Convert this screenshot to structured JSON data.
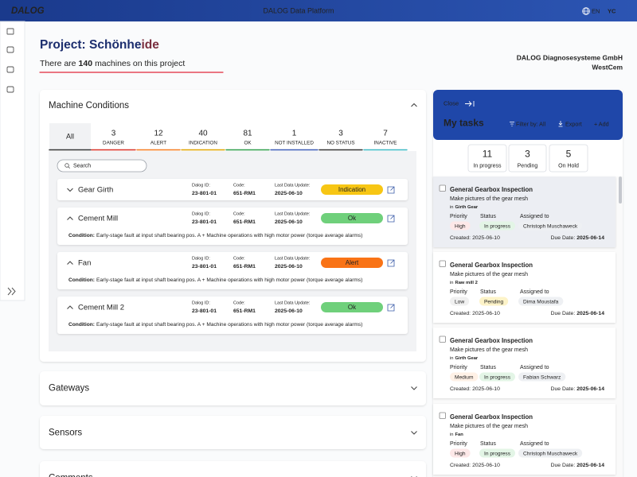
{
  "header": {
    "logo": "DALOG",
    "title": "DALOG Data Platform",
    "language": "EN",
    "user": "YC"
  },
  "project": {
    "title_prefix": "Project: Schönhe",
    "title_suffix": "ide",
    "machines_prefix": "There are",
    "machine_count": 140,
    "machines_suffix": "machines on this project",
    "company": "DALOG Diagnosesysteme GmbH",
    "site": "WestCem"
  },
  "machine_conditions": {
    "title": "Machine Conditions",
    "tabs": [
      {
        "label": "All"
      },
      {
        "count": 3,
        "label": "DANGER",
        "color": "#d93025"
      },
      {
        "count": 12,
        "label": "ALERT",
        "color": "#f57c1f"
      },
      {
        "count": 40,
        "label": "INDICATION",
        "color": "#e0a400"
      },
      {
        "count": 81,
        "label": "OK",
        "color": "#2e9e4a"
      },
      {
        "count": 1,
        "label": "NOT INSTALLED",
        "color": "#3b5bb5"
      },
      {
        "count": 3,
        "label": "NO STATUS",
        "color": "#333333"
      },
      {
        "count": 7,
        "label": "INACTIVE",
        "color": "#3bb8c4"
      }
    ],
    "search_placeholder": "Search",
    "field_labels": {
      "dalog_id": "Dalog ID:",
      "code": "Code:",
      "last_update": "Last Data Update:",
      "condition": "Condition:"
    },
    "machines": [
      {
        "name": "Gear Girth",
        "dalog_id": "23-801-01",
        "code": "651-RM1",
        "last_update": "2025-06-10",
        "status": "Indication",
        "status_color": "#f7c614",
        "status_text_color": "#1a1a1a"
      },
      {
        "name": "Cement Mill",
        "dalog_id": "23-801-01",
        "code": "651-RM1",
        "last_update": "2025-06-10",
        "status": "Ok",
        "status_color": "#6fd07b",
        "status_text_color": "#ffffff",
        "condition": "Early-stage fault at input shaft bearing pos. A + Machine operations with high motor power (torque average alarms)"
      },
      {
        "name": "Fan",
        "dalog_id": "23-801-01",
        "code": "651-RM1",
        "last_update": "2025-06-10",
        "status": "Alert",
        "status_color": "#f97316",
        "status_text_color": "#ffffff",
        "condition": "Early-stage fault at input shaft bearing pos. A + Machine operations with high motor power (torque average alarms)"
      },
      {
        "name": "Cement Mill 2",
        "dalog_id": "23-801-01",
        "code": "651-RM1",
        "last_update": "2025-06-10",
        "status": "Ok",
        "status_color": "#6fd07b",
        "status_text_color": "#ffffff",
        "condition": "Early-stage fault at input shaft bearing pos. A + Machine operations with high motor power (torque average alarms)"
      }
    ]
  },
  "sections": [
    "Gateways",
    "Sensors",
    "Comments"
  ],
  "tasks": {
    "close": "Close",
    "title": "My tasks",
    "filter": "Filter by: All",
    "export": "Export",
    "add": "+ Add",
    "summary": [
      {
        "count": 11,
        "label": "In progress"
      },
      {
        "count": 3,
        "label": "Pending"
      },
      {
        "count": 5,
        "label": "On Hold"
      }
    ],
    "field_labels": {
      "priority": "Priority",
      "status": "Status",
      "assigned": "Assigned to",
      "created": "Created:",
      "due": "Due Date:",
      "location": "in"
    },
    "items": [
      {
        "title": "General Gearbox Inspection",
        "description": "Make pictures of the gear mesh",
        "location": "Girth Gear",
        "priority": "High",
        "priority_color": "#e53935",
        "priority_bg": "#fde8e8",
        "status": "In progress",
        "status_color": "#2e9e4a",
        "status_bg": "#e3f5e6",
        "assigned": "Christoph Muschaweck",
        "created": "2025-06-10",
        "due": "2025-06-14"
      },
      {
        "title": "General Gearbox Inspection",
        "description": "Make pictures of the gear mesh",
        "location": "Raw mill 2",
        "priority": "Low",
        "priority_color": "#555555",
        "priority_bg": "#f0f0f0",
        "status": "Pending",
        "status_color": "#d98a00",
        "status_bg": "#fdf3c8",
        "assigned": "Dima Moustafa",
        "created": "2025-06-10",
        "due": "2025-06-14"
      },
      {
        "title": "General Gearbox Inspection",
        "description": "Make pictures of the gear mesh",
        "location": "Girth Gear",
        "priority": "Medium",
        "priority_color": "#f57c1f",
        "priority_bg": "#fff1e6",
        "status": "In progress",
        "status_color": "#2e9e4a",
        "status_bg": "#e3f5e6",
        "assigned": "Fabian Schwarz",
        "created": "2025-06-10",
        "due": "2025-06-14"
      },
      {
        "title": "General Gearbox Inspection",
        "description": "Make pictures of the gear mesh",
        "location": "Fan",
        "priority": "High",
        "priority_color": "#e53935",
        "priority_bg": "#fde8e8",
        "status": "In progress",
        "status_color": "#2e9e4a",
        "status_bg": "#e3f5e6",
        "assigned": "Christoph Muschaweck",
        "created": "2025-06-10",
        "due": "2025-06-14"
      }
    ]
  }
}
